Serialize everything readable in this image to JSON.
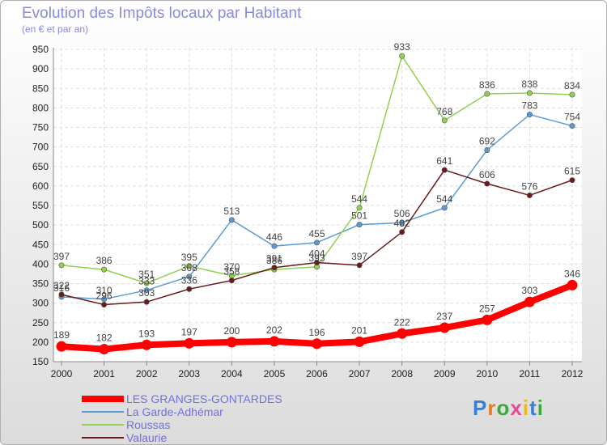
{
  "title": "Evolution des Impôts locaux par Habitant",
  "subtitle": "(en € et par an)",
  "logo": {
    "text": "Proxiti",
    "letter_colors": [
      "#3a7fd4",
      "#e87b1e",
      "#3aa83a",
      "#e84a9a",
      "#e8b81e",
      "#3a7fd4",
      "#3aa83a"
    ]
  },
  "chart_data": {
    "type": "line",
    "x": [
      "2000",
      "2001",
      "2002",
      "2003",
      "2004",
      "2005",
      "2006",
      "2007",
      "2008",
      "2009",
      "2010",
      "2011",
      "2012"
    ],
    "ylim": [
      150,
      950
    ],
    "yticks": [
      150,
      200,
      250,
      300,
      350,
      400,
      450,
      500,
      550,
      600,
      650,
      700,
      750,
      800,
      850,
      900,
      950
    ],
    "grid": true,
    "legend_position": "bottom-left",
    "series": [
      {
        "name": "LES GRANGES-GONTARDES",
        "color": "#ff0000",
        "emphasis": true,
        "values": [
          189,
          182,
          193,
          197,
          200,
          202,
          196,
          201,
          222,
          237,
          257,
          303,
          346
        ],
        "labels": [
          "189",
          "182",
          "193",
          "197",
          "200",
          "202",
          "196",
          "201",
          "222",
          "237",
          "257",
          "303",
          "346"
        ]
      },
      {
        "name": "La Garde-Adhémar",
        "color": "#5b9bd5",
        "values": [
          316,
          310,
          333,
          368,
          513,
          446,
          455,
          501,
          506,
          544,
          692,
          783,
          754
        ],
        "labels": [
          "316",
          "310",
          "333",
          "368",
          "513",
          "446",
          "455",
          "501",
          "506",
          "544",
          "692",
          "783",
          "754"
        ]
      },
      {
        "name": "Roussas",
        "color": "#92d050",
        "values": [
          397,
          386,
          351,
          395,
          370,
          386,
          393,
          544,
          933,
          768,
          836,
          838,
          834
        ],
        "labels": [
          "397",
          "386",
          "351",
          "395",
          "370",
          "386",
          "393",
          "544",
          "933",
          "768",
          "836",
          "838",
          "834"
        ]
      },
      {
        "name": "Valaurie",
        "color": "#6b1a1a",
        "values": [
          322,
          296,
          303,
          336,
          358,
          391,
          404,
          397,
          482,
          641,
          606,
          576,
          615
        ],
        "labels": [
          "322",
          "296",
          "303",
          "336",
          "358",
          "391",
          "404",
          "397",
          "482",
          "641",
          "606",
          "576",
          "615"
        ]
      }
    ]
  }
}
